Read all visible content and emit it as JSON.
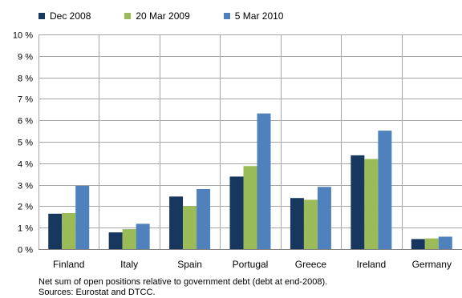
{
  "chart_data": {
    "type": "bar",
    "categories": [
      "Finland",
      "Italy",
      "Spain",
      "Portugal",
      "Greece",
      "Ireland",
      "Germany"
    ],
    "series": [
      {
        "name": "Dec 2008",
        "color": "#17375e",
        "values": [
          1.65,
          0.78,
          2.45,
          3.38,
          2.38,
          4.37,
          0.47
        ]
      },
      {
        "name": "20 Mar 2009",
        "color": "#9bbb59",
        "values": [
          1.68,
          0.93,
          2.0,
          3.87,
          2.3,
          4.2,
          0.5
        ]
      },
      {
        "name": "5 Mar 2010",
        "color": "#4f81bd",
        "values": [
          2.95,
          1.18,
          2.8,
          6.32,
          2.9,
          5.52,
          0.58
        ]
      }
    ],
    "ylim": [
      0,
      10
    ],
    "yticks": [
      "0 %",
      "1 %",
      "2 %",
      "3 %",
      "4 %",
      "5 %",
      "6 %",
      "7 %",
      "8 %",
      "9 %",
      "10 %"
    ],
    "grid": true,
    "legend_position": "top-left"
  },
  "notes": {
    "line1": "Net sum of open positions relative to government debt (debt at end-2008).",
    "line2": "Sources: Eurostat and DTCC."
  }
}
